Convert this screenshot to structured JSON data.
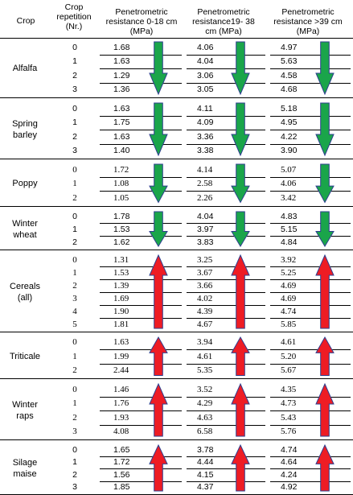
{
  "headers": {
    "crop": "Crop",
    "repetition": [
      "Crop",
      "repetition",
      "(Nr.)"
    ],
    "col1": [
      "Penetrometric",
      "resistance 0-18 cm",
      "(MPa)"
    ],
    "col2": [
      "Penetrometric",
      "resistance19- 38",
      "cm (MPa)"
    ],
    "col3": [
      "Penetrometric",
      "resistance >39 cm",
      "(MPa)"
    ]
  },
  "colors": {
    "down": "#1aa54a",
    "up": "#ee1c24",
    "outline": "#2e3f8f"
  },
  "groups": [
    {
      "name": [
        "Alfalfa"
      ],
      "font": "sans",
      "rows": [
        [
          "0",
          "1.68",
          "4.06",
          "4.97"
        ],
        [
          "1",
          "1.63",
          "4.04",
          "5.63"
        ],
        [
          "2",
          "1.29",
          "3.06",
          "4.58"
        ],
        [
          "3",
          "1.36",
          "3.05",
          "4.68"
        ]
      ],
      "arrows": [
        "down",
        "down",
        "down"
      ]
    },
    {
      "name": [
        "Spring",
        "barley"
      ],
      "font": "sans",
      "rows": [
        [
          "0",
          "1.63",
          "4.11",
          "5.18"
        ],
        [
          "1",
          "1.75",
          "4.09",
          "4.95"
        ],
        [
          "2",
          "1.63",
          "3.36",
          "4.22"
        ],
        [
          "3",
          "1.40",
          "3.38",
          "3.90"
        ]
      ],
      "arrows": [
        "down",
        "down",
        "down"
      ]
    },
    {
      "name": [
        "Poppy"
      ],
      "font": "serif",
      "rows": [
        [
          "0",
          "1.72",
          "4.14",
          "5.07"
        ],
        [
          "1",
          "1.08",
          "2.58",
          "4.06"
        ],
        [
          "2",
          "1.05",
          "2.26",
          "3.42"
        ]
      ],
      "arrows": [
        "down",
        "down",
        "down"
      ]
    },
    {
      "name": [
        "Winter",
        "wheat"
      ],
      "font": "mixed",
      "rows": [
        [
          "0",
          "1.78",
          "4.04",
          "4.83"
        ],
        [
          "1",
          "1.53",
          "3.97",
          "5.15"
        ],
        [
          "2",
          "1.62",
          "3.83",
          "4.84"
        ]
      ],
      "arrows": [
        "down",
        "down",
        "down"
      ]
    },
    {
      "name": [
        "Cereals",
        "(all)"
      ],
      "font": "serif",
      "rows": [
        [
          "0",
          "1.31",
          "3.25",
          "3.92"
        ],
        [
          "1",
          "1.53",
          "3.67",
          "5.25"
        ],
        [
          "2",
          "1.39",
          "3.66",
          "4.69"
        ],
        [
          "3",
          "1.69",
          "4.02",
          "4.69"
        ],
        [
          "4",
          "1.90",
          "4.39",
          "4.74"
        ],
        [
          "5",
          "1.81",
          "4.67",
          "5.85"
        ]
      ],
      "arrows": [
        "up",
        "up",
        "up"
      ]
    },
    {
      "name": [
        "Triticale"
      ],
      "font": "serif",
      "rows": [
        [
          "0",
          "1.63",
          "3.94",
          "4.61"
        ],
        [
          "1",
          "1.99",
          "4.61",
          "5.20"
        ],
        [
          "2",
          "2.44",
          "5.35",
          "5.67"
        ]
      ],
      "arrows": [
        "up",
        "up",
        "up"
      ]
    },
    {
      "name": [
        "Winter",
        "raps"
      ],
      "font": "serif",
      "rows": [
        [
          "0",
          "1.46",
          "3.52",
          "4.35"
        ],
        [
          "1",
          "1.76",
          "4.29",
          "4.73"
        ],
        [
          "2",
          "1.93",
          "4.63",
          "5.43"
        ],
        [
          "3",
          "4.08",
          "6.58",
          "5.76"
        ]
      ],
      "arrows": [
        "up",
        "up",
        "up"
      ]
    },
    {
      "name": [
        "Silage",
        "maise"
      ],
      "font": "sans",
      "rows": [
        [
          "0",
          "1.65",
          "3.78",
          "4.74"
        ],
        [
          "1",
          "1.72",
          "4.44",
          "4.64"
        ],
        [
          "2",
          "1.56",
          "4.15",
          "4.24"
        ],
        [
          "3",
          "1.85",
          "4.37",
          "4.92"
        ]
      ],
      "arrows": [
        "up",
        "up",
        "up"
      ]
    }
  ]
}
